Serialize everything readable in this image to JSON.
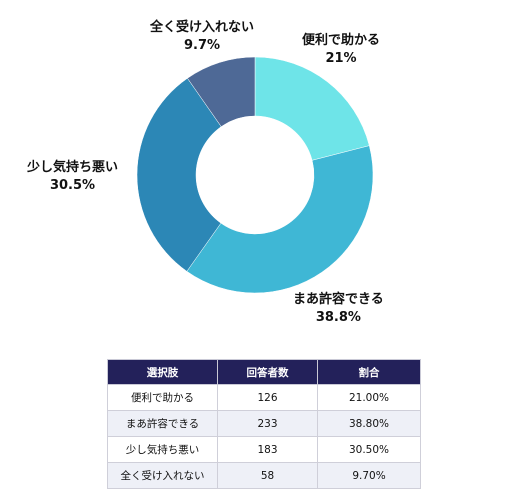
{
  "chart_data": {
    "type": "pie",
    "donut": true,
    "title": "",
    "slices": [
      {
        "label": "便利で助かる",
        "value": 21,
        "pct_label": "21%",
        "color": "#6ee4e8"
      },
      {
        "label": "まあ許容できる",
        "value": 38.8,
        "pct_label": "38.8%",
        "color": "#3fb7d5"
      },
      {
        "label": "少し気持ち悪い",
        "value": 30.5,
        "pct_label": "30.5%",
        "color": "#2c87b6"
      },
      {
        "label": "全く受け入れない",
        "value": 9.7,
        "pct_label": "9.7%",
        "color": "#4e6996"
      }
    ],
    "start_angle_deg": 0,
    "direction": "clockwise",
    "legend": "none"
  },
  "table": {
    "headers": [
      "選択肢",
      "回答者数",
      "割合"
    ],
    "rows": [
      [
        "便利で助かる",
        "126",
        "21.00%"
      ],
      [
        "まあ許容できる",
        "233",
        "38.80%"
      ],
      [
        "少し気持ち悪い",
        "183",
        "30.50%"
      ],
      [
        "全く受け入れない",
        "58",
        "9.70%"
      ]
    ]
  }
}
